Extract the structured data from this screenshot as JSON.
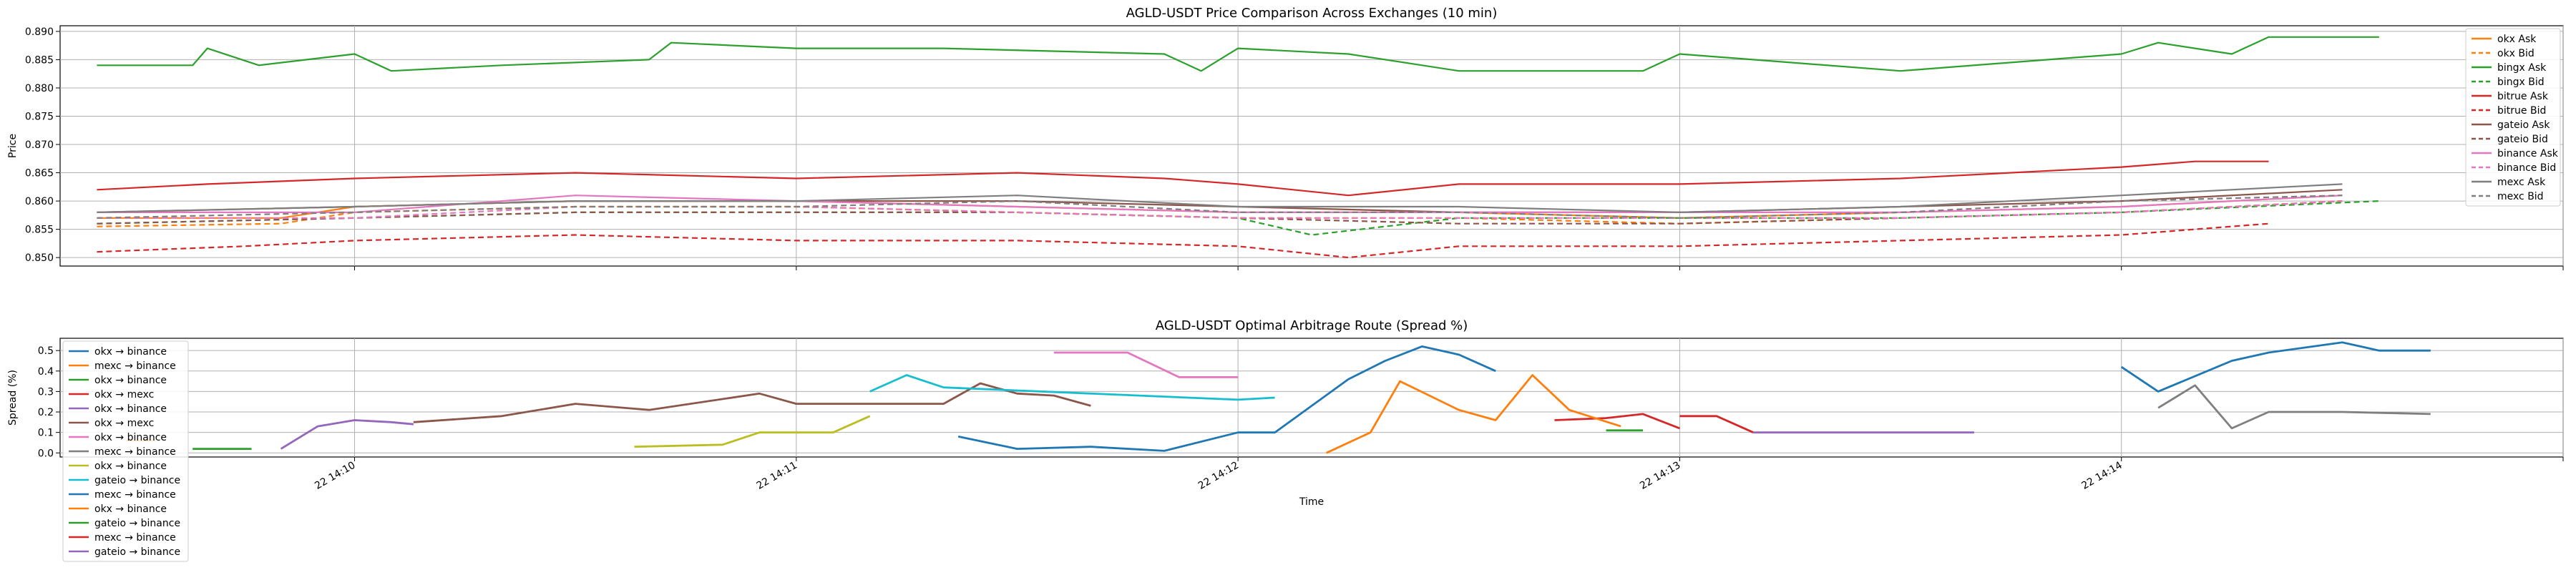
{
  "chart_data": [
    {
      "type": "line",
      "title": "AGLD-USDT Price Comparison Across Exchanges (10 min)",
      "xlabel": "",
      "ylabel": "Price",
      "ylim": [
        0.8485,
        0.891
      ],
      "yticks": [
        "0.850",
        "0.855",
        "0.860",
        "0.865",
        "0.870",
        "0.875",
        "0.880",
        "0.885",
        "0.890"
      ],
      "xlim": [
        "14:09:20",
        "14:15:00"
      ],
      "grid": true,
      "legend": "right",
      "series": [
        {
          "name": "okx Ask",
          "color": "#ff7f0e",
          "dashed": false,
          "x": [
            "14:09:25",
            "14:09:50",
            "14:10:00",
            "14:10:30",
            "14:11:00",
            "14:11:30",
            "14:12:00",
            "14:12:30",
            "14:13:00",
            "14:13:30",
            "14:14:00",
            "14:14:30"
          ],
          "y": [
            0.857,
            0.857,
            0.859,
            0.86,
            0.86,
            0.859,
            0.858,
            0.858,
            0.857,
            0.858,
            0.859,
            0.861
          ]
        },
        {
          "name": "okx Bid",
          "color": "#ff7f0e",
          "dashed": true,
          "x": [
            "14:09:25",
            "14:09:50",
            "14:10:00",
            "14:10:30",
            "14:11:00",
            "14:11:30",
            "14:12:00",
            "14:12:30",
            "14:13:00",
            "14:13:30",
            "14:14:00",
            "14:14:30"
          ],
          "y": [
            0.8555,
            0.856,
            0.858,
            0.859,
            0.859,
            0.858,
            0.857,
            0.857,
            0.856,
            0.857,
            0.858,
            0.86
          ]
        },
        {
          "name": "bingx Ask",
          "color": "#2ca02c",
          "dashed": false,
          "x": [
            "14:09:25",
            "14:09:38",
            "14:09:40",
            "14:09:47",
            "14:10:00",
            "14:10:05",
            "14:10:20",
            "14:10:40",
            "14:10:43",
            "14:11:00",
            "14:11:20",
            "14:11:50",
            "14:11:55",
            "14:12:00",
            "14:12:15",
            "14:12:30",
            "14:12:55",
            "14:13:00",
            "14:13:30",
            "14:14:00",
            "14:14:05",
            "14:14:15",
            "14:14:20",
            "14:14:35"
          ],
          "y": [
            0.884,
            0.884,
            0.887,
            0.884,
            0.886,
            0.883,
            0.884,
            0.885,
            0.888,
            0.887,
            0.887,
            0.886,
            0.883,
            0.887,
            0.886,
            0.883,
            0.883,
            0.886,
            0.883,
            0.886,
            0.888,
            0.886,
            0.889,
            0.889
          ]
        },
        {
          "name": "bingx Bid",
          "color": "#2ca02c",
          "dashed": true,
          "x": [
            "14:09:25",
            "14:10:00",
            "14:10:30",
            "14:11:00",
            "14:11:30",
            "14:12:00",
            "14:12:10",
            "14:12:30",
            "14:13:00",
            "14:13:30",
            "14:14:00",
            "14:14:35"
          ],
          "y": [
            0.856,
            0.857,
            0.858,
            0.858,
            0.858,
            0.857,
            0.854,
            0.857,
            0.857,
            0.857,
            0.858,
            0.86
          ]
        },
        {
          "name": "bitrue Ask",
          "color": "#d62728",
          "dashed": false,
          "x": [
            "14:09:25",
            "14:09:40",
            "14:10:00",
            "14:10:30",
            "14:11:00",
            "14:11:30",
            "14:11:50",
            "14:12:00",
            "14:12:15",
            "14:12:30",
            "14:13:00",
            "14:13:30",
            "14:14:00",
            "14:14:10",
            "14:14:20"
          ],
          "y": [
            0.862,
            0.863,
            0.864,
            0.865,
            0.864,
            0.865,
            0.864,
            0.863,
            0.861,
            0.863,
            0.863,
            0.864,
            0.866,
            0.867,
            0.867
          ]
        },
        {
          "name": "bitrue Bid",
          "color": "#d62728",
          "dashed": true,
          "x": [
            "14:09:25",
            "14:09:45",
            "14:10:00",
            "14:10:30",
            "14:11:00",
            "14:11:30",
            "14:12:00",
            "14:12:15",
            "14:12:30",
            "14:13:00",
            "14:13:30",
            "14:14:00",
            "14:14:20"
          ],
          "y": [
            0.851,
            0.852,
            0.853,
            0.854,
            0.853,
            0.853,
            0.852,
            0.85,
            0.852,
            0.852,
            0.853,
            0.854,
            0.856
          ]
        },
        {
          "name": "gateio Ask",
          "color": "#8c564b",
          "dashed": false,
          "x": [
            "14:09:25",
            "14:10:00",
            "14:10:30",
            "14:11:00",
            "14:11:30",
            "14:12:00",
            "14:12:30",
            "14:13:00",
            "14:13:30",
            "14:14:00",
            "14:14:30"
          ],
          "y": [
            0.858,
            0.859,
            0.86,
            0.86,
            0.86,
            0.859,
            0.858,
            0.858,
            0.859,
            0.86,
            0.862
          ]
        },
        {
          "name": "gateio Bid",
          "color": "#8c564b",
          "dashed": true,
          "x": [
            "14:09:25",
            "14:10:00",
            "14:10:30",
            "14:11:00",
            "14:11:30",
            "14:12:00",
            "14:12:30",
            "14:13:00",
            "14:13:30",
            "14:14:00",
            "14:14:30"
          ],
          "y": [
            0.856,
            0.857,
            0.858,
            0.858,
            0.858,
            0.857,
            0.856,
            0.856,
            0.857,
            0.858,
            0.86
          ]
        },
        {
          "name": "binance Ask",
          "color": "#e377c2",
          "dashed": false,
          "x": [
            "14:09:25",
            "14:10:00",
            "14:10:30",
            "14:11:00",
            "14:11:30",
            "14:12:00",
            "14:12:30",
            "14:13:00",
            "14:13:30",
            "14:14:00",
            "14:14:30"
          ],
          "y": [
            0.858,
            0.858,
            0.861,
            0.86,
            0.859,
            0.858,
            0.858,
            0.858,
            0.858,
            0.859,
            0.861
          ]
        },
        {
          "name": "binance Bid",
          "color": "#e377c2",
          "dashed": true,
          "x": [
            "14:09:25",
            "14:10:00",
            "14:10:30",
            "14:11:00",
            "14:11:30",
            "14:12:00",
            "14:12:30",
            "14:13:00",
            "14:13:30",
            "14:14:00",
            "14:14:30"
          ],
          "y": [
            0.857,
            0.857,
            0.859,
            0.859,
            0.858,
            0.857,
            0.857,
            0.857,
            0.857,
            0.858,
            0.86
          ]
        },
        {
          "name": "mexc Ask",
          "color": "#7f7f7f",
          "dashed": false,
          "x": [
            "14:09:25",
            "14:10:00",
            "14:10:30",
            "14:11:00",
            "14:11:30",
            "14:12:00",
            "14:12:30",
            "14:13:00",
            "14:13:30",
            "14:14:00",
            "14:14:30"
          ],
          "y": [
            0.858,
            0.859,
            0.86,
            0.86,
            0.861,
            0.859,
            0.859,
            0.858,
            0.859,
            0.861,
            0.863
          ]
        },
        {
          "name": "mexc Bid",
          "color": "#7f7f7f",
          "dashed": true,
          "x": [
            "14:09:25",
            "14:10:00",
            "14:10:30",
            "14:11:00",
            "14:11:30",
            "14:12:00",
            "14:12:30",
            "14:13:00",
            "14:13:30",
            "14:14:00",
            "14:14:30"
          ],
          "y": [
            0.857,
            0.858,
            0.859,
            0.859,
            0.86,
            0.858,
            0.858,
            0.857,
            0.858,
            0.86,
            0.861
          ]
        }
      ]
    },
    {
      "type": "line",
      "title": "AGLD-USDT Optimal Arbitrage Route (Spread %)",
      "xlabel": "Time",
      "ylabel": "Spread (%)",
      "ylim": [
        -0.02,
        0.56
      ],
      "yticks": [
        "0.0",
        "0.1",
        "0.2",
        "0.3",
        "0.4",
        "0.5"
      ],
      "xlim": [
        "14:09:20",
        "14:15:00"
      ],
      "xticks": [
        "22 14:10",
        "22 14:11",
        "22 14:12",
        "22 14:13",
        "22 14:14"
      ],
      "grid": true,
      "legend": "upper-left",
      "series": [
        {
          "name": "okx → binance",
          "color": "#1f77b4",
          "x": [
            "14:14:00",
            "14:14:05",
            "14:14:15",
            "14:14:20",
            "14:14:30",
            "14:14:35",
            "14:14:42"
          ],
          "y": [
            0.42,
            0.3,
            0.45,
            0.49,
            0.54,
            0.5,
            0.5
          ]
        },
        {
          "name": "mexc → binance",
          "color": "#ff7f0e",
          "x": [
            "14:09:29",
            "14:09:33"
          ],
          "y": [
            0.06,
            0.06
          ]
        },
        {
          "name": "okx → binance",
          "color": "#2ca02c",
          "x": [
            "14:09:38",
            "14:09:46"
          ],
          "y": [
            0.02,
            0.02
          ]
        },
        {
          "name": "okx → mexc",
          "color": "#d62728",
          "x": [
            "14:12:43",
            "14:12:50",
            "14:12:55",
            "14:13:00"
          ],
          "y": [
            0.16,
            0.17,
            0.19,
            0.12
          ]
        },
        {
          "name": "okx → binance",
          "color": "#9467bd",
          "x": [
            "14:09:50",
            "14:09:55",
            "14:10:00",
            "14:10:05",
            "14:10:08"
          ],
          "y": [
            0.02,
            0.13,
            0.16,
            0.15,
            0.14
          ]
        },
        {
          "name": "okx → mexc",
          "color": "#8c564b",
          "x": [
            "14:10:08",
            "14:10:20",
            "14:10:30",
            "14:10:40",
            "14:10:55",
            "14:11:00",
            "14:11:20",
            "14:11:25",
            "14:11:30",
            "14:11:35",
            "14:11:40"
          ],
          "y": [
            0.15,
            0.18,
            0.24,
            0.21,
            0.29,
            0.24,
            0.24,
            0.34,
            0.29,
            0.28,
            0.23
          ]
        },
        {
          "name": "okx → binance",
          "color": "#e377c2",
          "x": [
            "14:11:35",
            "14:11:45",
            "14:11:52",
            "14:12:00"
          ],
          "y": [
            0.49,
            0.49,
            0.37,
            0.37
          ]
        },
        {
          "name": "mexc → binance",
          "color": "#7f7f7f",
          "x": [
            "14:14:05",
            "14:14:10",
            "14:14:15",
            "14:14:20",
            "14:14:30",
            "14:14:42"
          ],
          "y": [
            0.22,
            0.33,
            0.12,
            0.2,
            0.2,
            0.19
          ]
        },
        {
          "name": "okx → binance",
          "color": "#bcbd22",
          "x": [
            "14:10:38",
            "14:10:50",
            "14:10:55",
            "14:11:05",
            "14:11:10"
          ],
          "y": [
            0.03,
            0.04,
            0.1,
            0.1,
            0.18
          ]
        },
        {
          "name": "gateio → binance",
          "color": "#17becf",
          "x": [
            "14:11:10",
            "14:11:15",
            "14:11:20",
            "14:12:00",
            "14:12:05"
          ],
          "y": [
            0.3,
            0.38,
            0.32,
            0.26,
            0.27
          ]
        },
        {
          "name": "mexc → binance",
          "color": "#1f77b4",
          "x": [
            "14:11:22",
            "14:11:30",
            "14:11:40",
            "14:11:50",
            "14:12:00",
            "14:12:05",
            "14:12:15",
            "14:12:20",
            "14:12:25",
            "14:12:30",
            "14:12:35"
          ],
          "y": [
            0.08,
            0.02,
            0.03,
            0.01,
            0.1,
            0.1,
            0.36,
            0.45,
            0.52,
            0.48,
            0.4
          ]
        },
        {
          "name": "okx → binance",
          "color": "#ff7f0e",
          "x": [
            "14:12:12",
            "14:12:18",
            "14:12:22",
            "14:12:30",
            "14:12:35",
            "14:12:40",
            "14:12:45",
            "14:12:52"
          ],
          "y": [
            0.0,
            0.1,
            0.35,
            0.21,
            0.16,
            0.38,
            0.21,
            0.13
          ]
        },
        {
          "name": "gateio → binance",
          "color": "#2ca02c",
          "x": [
            "14:12:50",
            "14:12:55"
          ],
          "y": [
            0.11,
            0.11
          ]
        },
        {
          "name": "mexc → binance",
          "color": "#d62728",
          "x": [
            "14:13:00",
            "14:13:05",
            "14:13:10"
          ],
          "y": [
            0.18,
            0.18,
            0.1
          ]
        },
        {
          "name": "gateio → binance",
          "color": "#9467bd",
          "x": [
            "14:13:10",
            "14:13:30",
            "14:13:40"
          ],
          "y": [
            0.1,
            0.1,
            0.1
          ]
        }
      ]
    }
  ]
}
